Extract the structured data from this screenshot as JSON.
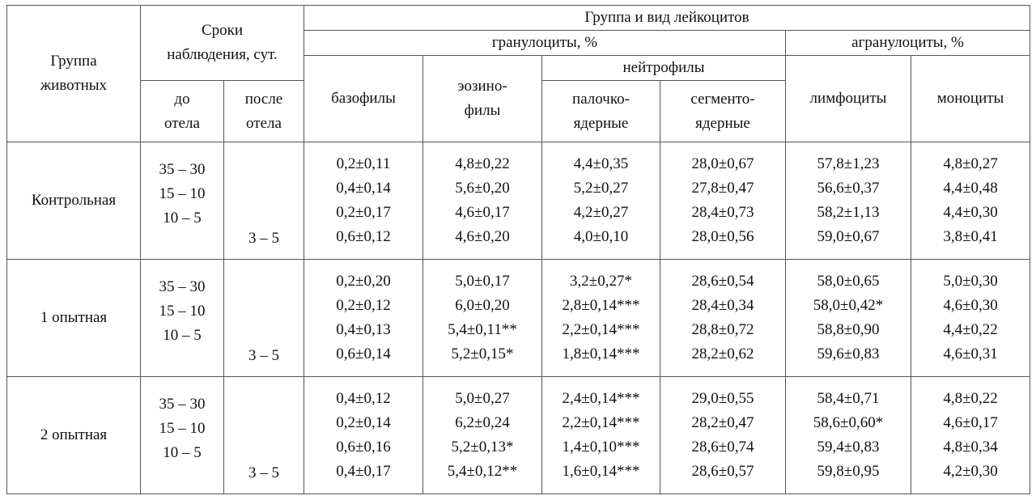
{
  "header": {
    "group_animals": [
      "Группа",
      "животных"
    ],
    "observation": [
      "Сроки",
      "наблюдения, сут."
    ],
    "before": [
      "до",
      "отела"
    ],
    "after": [
      "после",
      "отела"
    ],
    "leukocytes": "Группа и вид лейкоцитов",
    "granulocytes": "гранулоциты, %",
    "agranulocytes": "агранулоциты, %",
    "basophils": "базофилы",
    "eosinophils": [
      "эозино-",
      "филы"
    ],
    "neutrophils": "нейтрофилы",
    "band": [
      "палочко-",
      "ядерные"
    ],
    "segmented": [
      "сегменто-",
      "ядерные"
    ],
    "lymphocytes": "лимфоциты",
    "monocytes": "моноциты"
  },
  "rows": [
    {
      "group": "Контрольная",
      "before": [
        "35 – 30",
        "15 – 10",
        "10 – 5"
      ],
      "after": "3 – 5",
      "basophils": [
        "0,2±0,11",
        "0,4±0,14",
        "0,2±0,17",
        "0,6±0,12"
      ],
      "eosinophils": [
        "4,8±0,22",
        "5,6±0,20",
        "4,6±0,17",
        "4,6±0,20"
      ],
      "band": [
        "4,4±0,35",
        "5,2±0,27",
        "4,2±0,27",
        "4,0±0,10"
      ],
      "segmented": [
        "28,0±0,67",
        "27,8±0,47",
        "28,4±0,73",
        "28,0±0,56"
      ],
      "lymphocytes": [
        "57,8±1,23",
        "56,6±0,37",
        "58,2±1,13",
        "59,0±0,67"
      ],
      "monocytes": [
        "4,8±0,27",
        "4,4±0,48",
        "4,4±0,30",
        "3,8±0,41"
      ]
    },
    {
      "group": "1 опытная",
      "before": [
        "35 – 30",
        "15 – 10",
        "10 – 5"
      ],
      "after": "3 – 5",
      "basophils": [
        "0,2±0,20",
        "0,2±0,12",
        "0,4±0,13",
        "0,6±0,14"
      ],
      "eosinophils": [
        "5,0±0,17",
        "6,0±0,20",
        "5,4±0,11**",
        "5,2±0,15*"
      ],
      "band": [
        "3,2±0,27*",
        "2,8±0,14***",
        "2,2±0,14***",
        "1,8±0,14***"
      ],
      "segmented": [
        "28,6±0,54",
        "28,4±0,34",
        "28,8±0,72",
        "28,2±0,62"
      ],
      "lymphocytes": [
        "58,0±0,65",
        "58,0±0,42*",
        "58,8±0,90",
        "59,6±0,83"
      ],
      "monocytes": [
        "5,0±0,30",
        "4,6±0,30",
        "4,4±0,22",
        "4,6±0,31"
      ]
    },
    {
      "group": "2 опытная",
      "before": [
        "35 – 30",
        "15 – 10",
        "10 – 5"
      ],
      "after": "3 – 5",
      "basophils": [
        "0,4±0,12",
        "0,2±0,14",
        "0,6±0,16",
        "0,4±0,17"
      ],
      "eosinophils": [
        "5,0±0,27",
        "6,2±0,24",
        "5,2±0,13*",
        "5,4±0,12**"
      ],
      "band": [
        "2,4±0,14***",
        "2,2±0,14***",
        "1,4±0,10***",
        "1,6±0,14***"
      ],
      "segmented": [
        "29,0±0,55",
        "28,2±0,47",
        "28,6±0,74",
        "28,6±0,57"
      ],
      "lymphocytes": [
        "58,4±0,71",
        "58,6±0,60*",
        "59,4±0,83",
        "59,8±0,95"
      ],
      "monocytes": [
        "4,8±0,22",
        "4,6±0,17",
        "4,8±0,34",
        "4,2±0,30"
      ]
    }
  ]
}
